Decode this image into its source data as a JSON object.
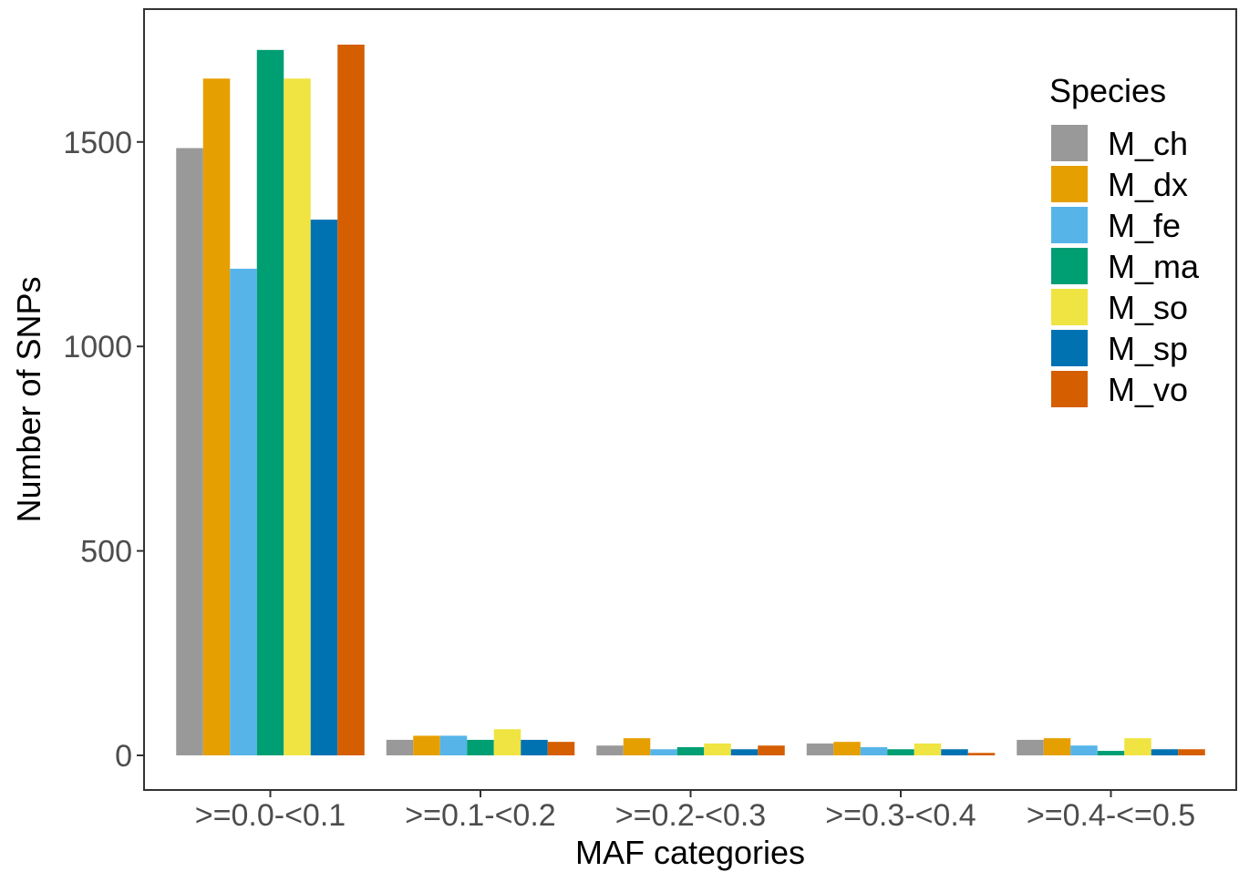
{
  "chart_data": {
    "type": "bar",
    "title": "",
    "xlabel": "MAF categories",
    "ylabel": "Number of SNPs",
    "ylim": [
      0,
      1900
    ],
    "yticks": [
      0,
      500,
      1000,
      1500
    ],
    "grid": false,
    "legend": {
      "title": "Species",
      "position": "right"
    },
    "categories": [
      ">=0.0-<0.1",
      ">=0.1-<0.2",
      ">=0.2-<0.3",
      ">=0.3-<0.4",
      ">=0.4-<=0.5"
    ],
    "series": [
      {
        "name": "M_ch",
        "color": "#999999",
        "values": [
          1485,
          38,
          24,
          29,
          38
        ]
      },
      {
        "name": "M_dx",
        "color": "#E69F00",
        "values": [
          1655,
          48,
          42,
          33,
          42
        ]
      },
      {
        "name": "M_fe",
        "color": "#56B4E9",
        "values": [
          1190,
          48,
          15,
          20,
          24
        ]
      },
      {
        "name": "M_ma",
        "color": "#009E73",
        "values": [
          1725,
          38,
          20,
          15,
          11
        ]
      },
      {
        "name": "M_so",
        "color": "#F0E442",
        "values": [
          1655,
          64,
          29,
          29,
          42
        ]
      },
      {
        "name": "M_sp",
        "color": "#0072B2",
        "values": [
          1310,
          38,
          15,
          15,
          15
        ]
      },
      {
        "name": "M_vo",
        "color": "#D55E00",
        "values": [
          1738,
          33,
          24,
          6,
          15
        ]
      }
    ]
  }
}
